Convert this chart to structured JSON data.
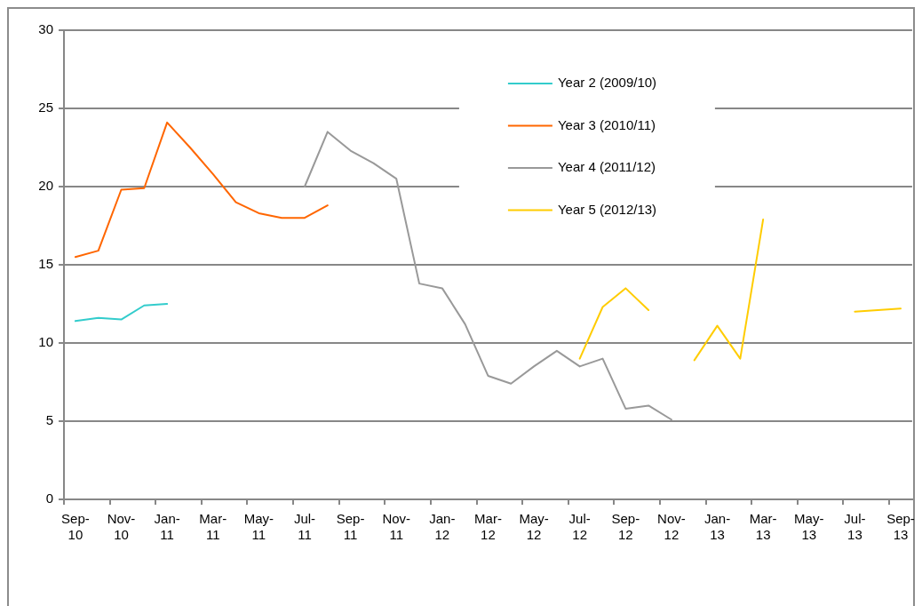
{
  "chart_data": {
    "type": "line",
    "categories": [
      "Sep-10",
      null,
      "Nov-10",
      null,
      "Jan-11",
      null,
      "Mar-11",
      null,
      "May-11",
      null,
      "Jul-11",
      null,
      "Sep-11",
      null,
      "Nov-11",
      null,
      "Jan-12",
      null,
      "Mar-12",
      null,
      "May-12",
      null,
      "Jul-12",
      null,
      "Sep-12",
      null,
      "Nov-12",
      null,
      "Jan-13",
      null,
      "Mar-13",
      null,
      "May-13",
      null,
      "Jul-13",
      null,
      "Sep-13"
    ],
    "series": [
      {
        "name": "Year 2 (2009/10)",
        "color": "#33cccc",
        "values": [
          11.4,
          11.6,
          11.5,
          12.4,
          12.5,
          null,
          null,
          null,
          null,
          null,
          null,
          null,
          null,
          null,
          null,
          null,
          null,
          null,
          null,
          null,
          null,
          null,
          null,
          null,
          null,
          null,
          null,
          null,
          null,
          null,
          null,
          null,
          null,
          null,
          null,
          null,
          null
        ]
      },
      {
        "name": "Year 3 (2010/11)",
        "color": "#ff6600",
        "values": [
          15.5,
          15.9,
          19.8,
          19.9,
          24.1,
          22.5,
          20.8,
          19.0,
          18.3,
          18.0,
          18.0,
          18.8,
          null,
          null,
          null,
          null,
          null,
          null,
          null,
          null,
          null,
          null,
          null,
          null,
          null,
          null,
          null,
          null,
          null,
          null,
          null,
          null,
          null,
          null,
          null,
          null,
          null
        ]
      },
      {
        "name": "Year 4 (2011/12)",
        "color": "#999999",
        "values": [
          null,
          null,
          null,
          null,
          null,
          null,
          null,
          null,
          null,
          null,
          20.0,
          23.5,
          22.3,
          21.5,
          20.5,
          13.8,
          13.5,
          11.2,
          7.9,
          7.4,
          8.5,
          9.5,
          8.5,
          9.0,
          5.8,
          6.0,
          5.1,
          null,
          null,
          null,
          null,
          null,
          null,
          null,
          null,
          null,
          null
        ]
      },
      {
        "name": "Year 5 (2012/13)",
        "color": "#ffcc00",
        "values": [
          null,
          null,
          null,
          null,
          null,
          null,
          null,
          null,
          null,
          null,
          null,
          null,
          null,
          null,
          null,
          null,
          null,
          null,
          null,
          null,
          null,
          null,
          9.0,
          12.3,
          13.5,
          12.1,
          null,
          8.9,
          11.1,
          9.0,
          17.9,
          null,
          null,
          null,
          12.0,
          12.1,
          12.2
        ]
      }
    ],
    "ylim": [
      0,
      30
    ],
    "yticks": [
      0,
      5,
      10,
      15,
      20,
      25,
      30
    ],
    "grid": "y",
    "legend": "top right",
    "marker": "none",
    "line_style": "solid"
  }
}
